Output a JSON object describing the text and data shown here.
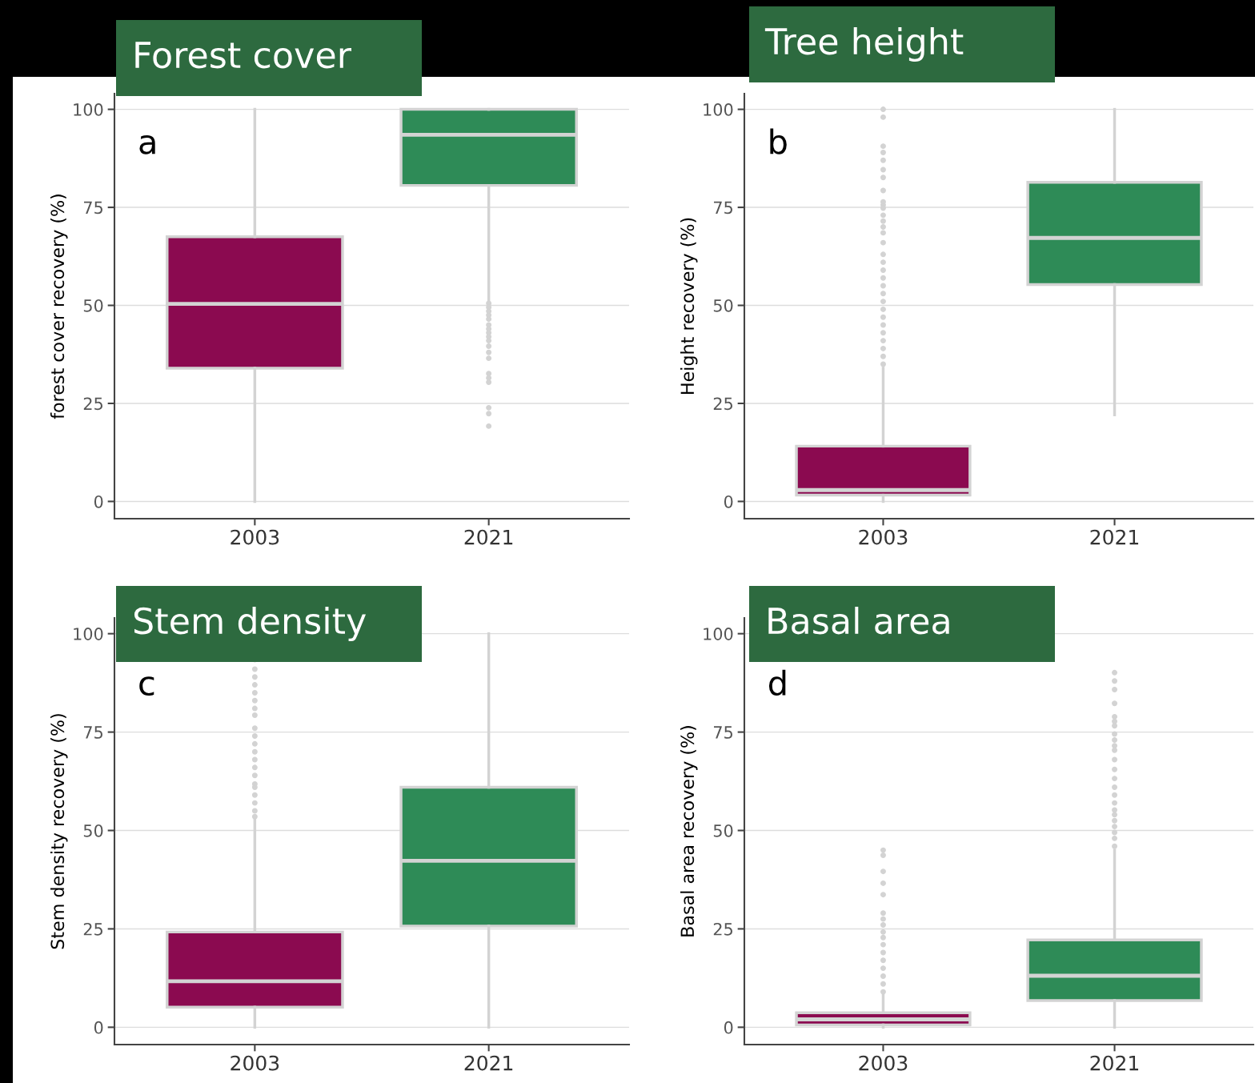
{
  "chart_data": [
    {
      "type": "box",
      "title": "Forest cover",
      "ylabel": "forest cover recovery (%)",
      "categories": [
        "2003",
        "2021"
      ],
      "colors": [
        "#8b0a50",
        "#2e8b57"
      ],
      "ylim": [
        -4.4,
        104
      ],
      "yticks": [
        0,
        25,
        50,
        75,
        100
      ],
      "grid": "y",
      "annotations": [
        "a"
      ],
      "boxes": [
        {
          "low": 0,
          "q1": 34,
          "median": 50.4,
          "q3": 67.5,
          "high": 100
        },
        {
          "low": 51,
          "q1": 80.6,
          "median": 93.5,
          "q3": 100,
          "high": 100,
          "outliers": [
            50.5,
            49.5,
            48.5,
            47.5,
            46.5,
            45,
            44,
            43,
            42,
            41,
            39.6,
            38,
            36.5,
            32.6,
            31.5,
            30.4,
            23.9,
            22.4,
            19.2
          ]
        }
      ]
    },
    {
      "type": "box",
      "title": "Tree height",
      "ylabel": "Height recovery (%)",
      "categories": [
        "2003",
        "2021"
      ],
      "colors": [
        "#8b0a50",
        "#2e8b57"
      ],
      "ylim": [
        -4.4,
        104
      ],
      "yticks": [
        0,
        25,
        50,
        75,
        100
      ],
      "grid": "y",
      "annotations": [
        "b"
      ],
      "boxes": [
        {
          "low": 0,
          "q1": 1.6,
          "median": 2.9,
          "q3": 14.1,
          "high": 34,
          "outliers": [
            100,
            98,
            90.6,
            89,
            87,
            84.6,
            82.6,
            79.3,
            76.4,
            75.6,
            74.8,
            73,
            71.5,
            70,
            68.5,
            66,
            63,
            61,
            59,
            57,
            55,
            53,
            51,
            49,
            47,
            45,
            43,
            41,
            39,
            37,
            35
          ]
        },
        {
          "low": 22.1,
          "q1": 55.3,
          "median": 67.2,
          "q3": 81.4,
          "high": 100
        }
      ]
    },
    {
      "type": "box",
      "title": "Stem density",
      "ylabel": "Stem density recovery (%)",
      "categories": [
        "2003",
        "2021"
      ],
      "colors": [
        "#8b0a50",
        "#2e8b57"
      ],
      "ylim": [
        -4.4,
        104
      ],
      "yticks": [
        0,
        25,
        50,
        75,
        100
      ],
      "grid": "y",
      "annotations": [
        "c"
      ],
      "boxes": [
        {
          "low": 0,
          "q1": 5.1,
          "median": 11.7,
          "q3": 24.2,
          "high": 53,
          "outliers": [
            93.4,
            91,
            89,
            87,
            85,
            83,
            81,
            79.3,
            76,
            74,
            72,
            70,
            68,
            66,
            64,
            61.8,
            61,
            59,
            57,
            55,
            53.5
          ]
        },
        {
          "low": 0,
          "q1": 25.7,
          "median": 42.3,
          "q3": 61,
          "high": 100
        }
      ]
    },
    {
      "type": "box",
      "title": "Basal area",
      "ylabel": "Basal area recovery (%)",
      "categories": [
        "2003",
        "2021"
      ],
      "colors": [
        "#8b0a50",
        "#2e8b57"
      ],
      "ylim": [
        -4.4,
        104
      ],
      "yticks": [
        0,
        25,
        50,
        75,
        100
      ],
      "grid": "y",
      "annotations": [
        "d"
      ],
      "boxes": [
        {
          "low": 0,
          "q1": 0.6,
          "median": 2,
          "q3": 3.7,
          "high": 8.4,
          "outliers": [
            45,
            43.7,
            39.6,
            36.6,
            33.7,
            29,
            27.5,
            26,
            24.2,
            22.8,
            21,
            19,
            17,
            15,
            13,
            11,
            9
          ]
        },
        {
          "low": 0,
          "q1": 6.8,
          "median": 13.1,
          "q3": 22.2,
          "high": 45,
          "outliers": [
            90.1,
            88,
            85.8,
            82.3,
            78.9,
            77.7,
            76.6,
            74.5,
            73,
            71.5,
            70.4,
            68,
            65.5,
            63.2,
            61,
            59,
            57,
            55.2,
            54,
            52.5,
            51,
            49.5,
            48,
            46
          ]
        }
      ]
    }
  ]
}
